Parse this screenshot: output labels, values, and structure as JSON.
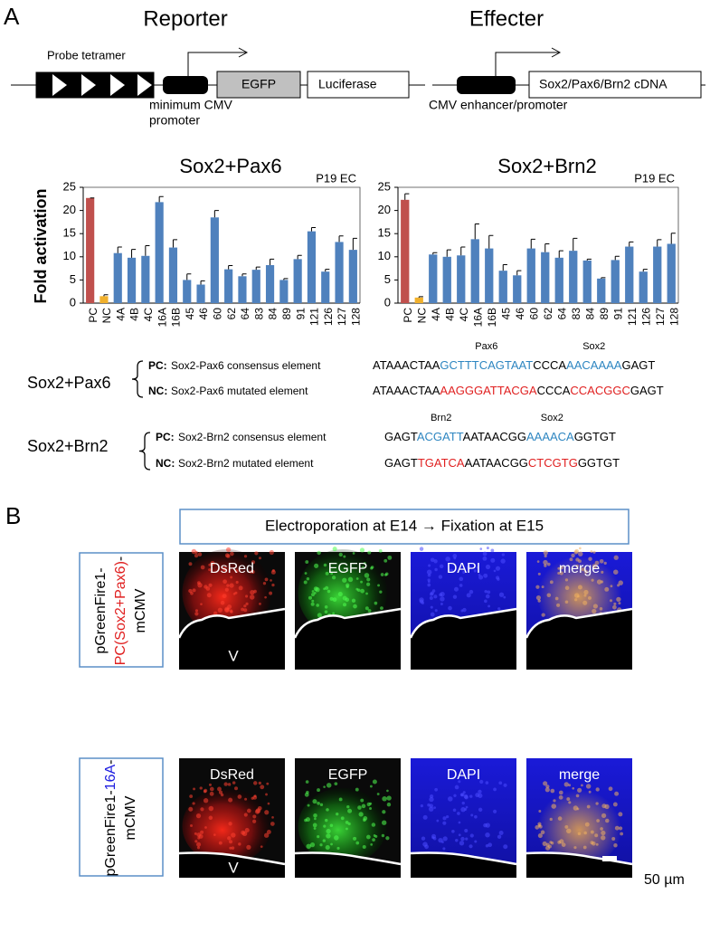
{
  "panel_labels": [
    "A",
    "B"
  ],
  "reporter": {
    "title": "Reporter",
    "probe_label": "Probe tetramer",
    "egfp": "EGFP",
    "luciferase": "Luciferase",
    "promoter_lines": [
      "minimum CMV",
      "promoter"
    ]
  },
  "effecter": {
    "title": "Effecter",
    "cdna": "Sox2/Pax6/Brn2 cDNA",
    "promoter_label": "CMV enhancer/promoter"
  },
  "chart_data": [
    {
      "type": "bar",
      "title": "Sox2+Pax6",
      "corner_text": "P19 EC",
      "y_label": "Fold activation",
      "categories": [
        "PC",
        "NC",
        "4A",
        "4B",
        "4C",
        "16A",
        "16B",
        "45",
        "46",
        "60",
        "62",
        "64",
        "83",
        "84",
        "89",
        "91",
        "121",
        "126",
        "127",
        "128"
      ],
      "series": [
        {
          "colors": [
            "#c0504d",
            "#f0b02c",
            "#4f81bd",
            "#4f81bd",
            "#4f81bd",
            "#4f81bd",
            "#4f81bd",
            "#4f81bd",
            "#4f81bd",
            "#4f81bd",
            "#4f81bd",
            "#4f81bd",
            "#4f81bd",
            "#4f81bd",
            "#4f81bd",
            "#4f81bd",
            "#4f81bd",
            "#4f81bd",
            "#4f81bd",
            "#4f81bd"
          ],
          "values": [
            22.7,
            1.5,
            10.8,
            9.8,
            10.2,
            21.8,
            12,
            5,
            4,
            18.5,
            7.3,
            5.8,
            7.2,
            8.2,
            5,
            9.5,
            15.5,
            6.8,
            13.2,
            11.5
          ],
          "errors": [
            0,
            0.3,
            1.3,
            1.8,
            2.2,
            1.2,
            1.7,
            1.3,
            0.8,
            1.5,
            0.8,
            0.5,
            0.6,
            1.3,
            0.3,
            0.8,
            0.8,
            0.5,
            1.3,
            2.5
          ]
        }
      ],
      "ylim": [
        0,
        25
      ],
      "yticks": [
        0,
        5,
        10,
        15,
        20,
        25
      ]
    },
    {
      "type": "bar",
      "title": "Sox2+Brn2",
      "corner_text": "P19 EC",
      "categories": [
        "PC",
        "NC",
        "4A",
        "4B",
        "4C",
        "16A",
        "16B",
        "45",
        "46",
        "60",
        "62",
        "64",
        "83",
        "84",
        "89",
        "91",
        "121",
        "126",
        "127",
        "128"
      ],
      "series": [
        {
          "colors": [
            "#c0504d",
            "#f0b02c",
            "#4f81bd",
            "#4f81bd",
            "#4f81bd",
            "#4f81bd",
            "#4f81bd",
            "#4f81bd",
            "#4f81bd",
            "#4f81bd",
            "#4f81bd",
            "#4f81bd",
            "#4f81bd",
            "#4f81bd",
            "#4f81bd",
            "#4f81bd",
            "#4f81bd",
            "#4f81bd",
            "#4f81bd",
            "#4f81bd"
          ],
          "values": [
            22.3,
            1.2,
            10.5,
            10,
            10.3,
            13.8,
            11.8,
            7,
            6,
            11.8,
            11,
            9.8,
            11.3,
            9.2,
            5.3,
            9.3,
            12.2,
            6.8,
            12.2,
            12.8
          ],
          "errors": [
            1.3,
            0.2,
            0.4,
            1.5,
            1.8,
            3.3,
            2.8,
            1.3,
            1,
            2,
            1.8,
            1.5,
            2.7,
            0.3,
            0.2,
            0.8,
            1,
            0.5,
            1.5,
            2.3
          ]
        }
      ],
      "ylim": [
        0,
        25
      ],
      "yticks": [
        0,
        5,
        10,
        15,
        20,
        25
      ]
    }
  ],
  "sequences": [
    {
      "group": "Sox2+Pax6",
      "rows": [
        {
          "tag": "PC:",
          "desc": "Sox2-Pax6 consensus element",
          "segments": [
            {
              "text": "ATAAACTAA",
              "color": "#000000"
            },
            {
              "text": "GCTTTCAGTAAT",
              "color": "#2e86c1",
              "annotation": "Pax6"
            },
            {
              "text": "CCCA",
              "color": "#000000"
            },
            {
              "text": "AACAAAA",
              "color": "#2e86c1",
              "annotation": "Sox2"
            },
            {
              "text": "GAGT",
              "color": "#000000"
            }
          ]
        },
        {
          "tag": "NC:",
          "desc": "Sox2-Pax6 mutated element",
          "segments": [
            {
              "text": "ATAAACTAA",
              "color": "#000000"
            },
            {
              "text": "AAGGGATTACGA",
              "color": "#e02020"
            },
            {
              "text": "CCCA",
              "color": "#000000"
            },
            {
              "text": "CCACGGC",
              "color": "#e02020"
            },
            {
              "text": "GAGT",
              "color": "#000000"
            }
          ]
        }
      ]
    },
    {
      "group": "Sox2+Brn2",
      "rows": [
        {
          "tag": "PC:",
          "desc": "Sox2-Brn2 consensus element",
          "segments": [
            {
              "text": "GAGT",
              "color": "#000000"
            },
            {
              "text": "ACGATT",
              "color": "#2e86c1",
              "annotation": "Brn2"
            },
            {
              "text": "AATAACGG",
              "color": "#000000"
            },
            {
              "text": "AAAACA",
              "color": "#2e86c1",
              "annotation": "Sox2"
            },
            {
              "text": "GGTGT",
              "color": "#000000"
            }
          ]
        },
        {
          "tag": "NC:",
          "desc": "Sox2-Brn2 mutated element",
          "segments": [
            {
              "text": "GAGT",
              "color": "#000000"
            },
            {
              "text": "TGATCA",
              "color": "#e02020"
            },
            {
              "text": "AATAACGG",
              "color": "#000000"
            },
            {
              "text": "CTCGTG",
              "color": "#e02020"
            },
            {
              "text": "GGTGT",
              "color": "#000000"
            }
          ]
        }
      ]
    }
  ],
  "panel_b": {
    "header": "Electroporation at E14 → Fixation at E15",
    "channels": [
      "DsRed",
      "EGFP",
      "DAPI",
      "merge"
    ],
    "rows": [
      {
        "label_lines": [
          [
            {
              "text": "pGreenFire1-",
              "color": "#000000"
            }
          ],
          [
            {
              "text": "PC(Sox2+Pax6)",
              "color": "#e02020"
            },
            {
              "text": "-",
              "color": "#000000"
            }
          ],
          [
            {
              "text": "mCMV",
              "color": "#000000"
            }
          ]
        ]
      },
      {
        "label_lines": [
          [
            {
              "text": "pGreenFire1-",
              "color": "#000000"
            },
            {
              "text": "16A",
              "color": "#2020e0"
            },
            {
              "text": "-",
              "color": "#000000"
            }
          ],
          [
            {
              "text": "mCMV",
              "color": "#000000"
            }
          ]
        ]
      }
    ],
    "ventricle": "V",
    "scale": "50 µm"
  }
}
